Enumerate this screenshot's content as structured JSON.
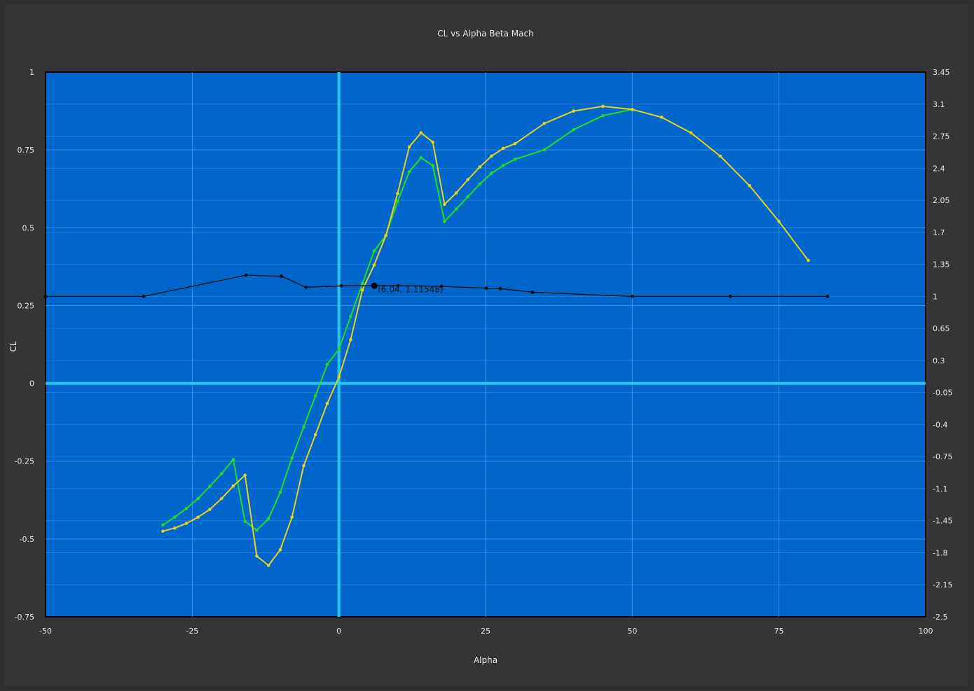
{
  "chart_data": {
    "type": "line",
    "title": "CL vs Alpha Beta Mach",
    "xlabel": "Alpha",
    "ylabel": "CL",
    "xlim": [
      -50,
      100
    ],
    "ylim": [
      -0.75,
      1
    ],
    "y2lim": [
      -2.5,
      3.45
    ],
    "xticks": [
      "-50",
      "-25",
      "0",
      "25",
      "50",
      "75",
      "100"
    ],
    "yticks": [
      "-0.75",
      "-0.5",
      "-0.25",
      "0",
      "0.25",
      "0.5",
      "0.75",
      "1"
    ],
    "y2ticks": [
      "-2.5",
      "-2.15",
      "-1.8",
      "-1.45",
      "-1.1",
      "-0.75",
      "-0.4",
      "-0.05",
      "0.3",
      "0.65",
      "1",
      "1.35",
      "1.7",
      "2.05",
      "2.4",
      "2.75",
      "3.1",
      "3.45"
    ],
    "grid": true,
    "colors": {
      "plot_bg": "#0066cc",
      "grid": "#3d8fe0",
      "crosshair": "#22c8f0",
      "green": "#22dd22",
      "yellow": "#e6d21e",
      "black": "#0a0a0a"
    },
    "series": [
      {
        "axis": "left",
        "color": "green",
        "markers": true,
        "x": [
          -30,
          -28,
          -26,
          -24,
          -22,
          -20,
          -18,
          -16,
          -14,
          -12,
          -10,
          -8,
          -6,
          -4,
          -2,
          0,
          2,
          4,
          6,
          8,
          10,
          12,
          14,
          16,
          18,
          20,
          22,
          24,
          26,
          28,
          30,
          35,
          40,
          45,
          50
        ],
        "y": [
          -0.455,
          -0.43,
          -0.402,
          -0.37,
          -0.331,
          -0.29,
          -0.245,
          -0.443,
          -0.472,
          -0.435,
          -0.35,
          -0.24,
          -0.14,
          -0.04,
          0.06,
          0.11,
          0.215,
          0.32,
          0.425,
          0.475,
          0.585,
          0.68,
          0.725,
          0.7,
          0.52,
          0.56,
          0.6,
          0.64,
          0.675,
          0.7,
          0.72,
          0.75,
          0.815,
          0.86,
          0.88
        ]
      },
      {
        "axis": "left",
        "color": "yellow",
        "markers": true,
        "x": [
          -30,
          -28,
          -26,
          -24,
          -22,
          -20,
          -18,
          -16,
          -14,
          -12,
          -10,
          -8,
          -6,
          -4,
          -2,
          0,
          2,
          4,
          6,
          8,
          10,
          12,
          14,
          16,
          18,
          20,
          22,
          24,
          26,
          28,
          30,
          35,
          40,
          45,
          50,
          55,
          60,
          65,
          70,
          75,
          80
        ],
        "y": [
          -0.475,
          -0.465,
          -0.45,
          -0.43,
          -0.405,
          -0.37,
          -0.33,
          -0.295,
          -0.555,
          -0.585,
          -0.535,
          -0.43,
          -0.265,
          -0.165,
          -0.065,
          0.02,
          0.14,
          0.3,
          0.38,
          0.475,
          0.61,
          0.76,
          0.805,
          0.775,
          0.575,
          0.612,
          0.655,
          0.695,
          0.73,
          0.755,
          0.77,
          0.835,
          0.875,
          0.89,
          0.88,
          0.855,
          0.805,
          0.73,
          0.635,
          0.52,
          0.395
        ]
      },
      {
        "axis": "right",
        "color": "black",
        "markers": true,
        "x": [
          -50,
          -33.3,
          -15.8,
          -9.8,
          -5.6,
          0.4,
          10.1,
          17.5,
          25.1,
          27.5,
          33,
          50,
          66.7,
          83.3
        ],
        "y": [
          1.0,
          1.0,
          1.232,
          1.22,
          1.1,
          1.115,
          1.118,
          1.11,
          1.09,
          1.085,
          1.045,
          1.0,
          1.0,
          1.0
        ]
      }
    ],
    "highlight_point": {
      "x": 6.04,
      "y": 1.11548,
      "label": "(6.04, 1.11548)"
    }
  }
}
